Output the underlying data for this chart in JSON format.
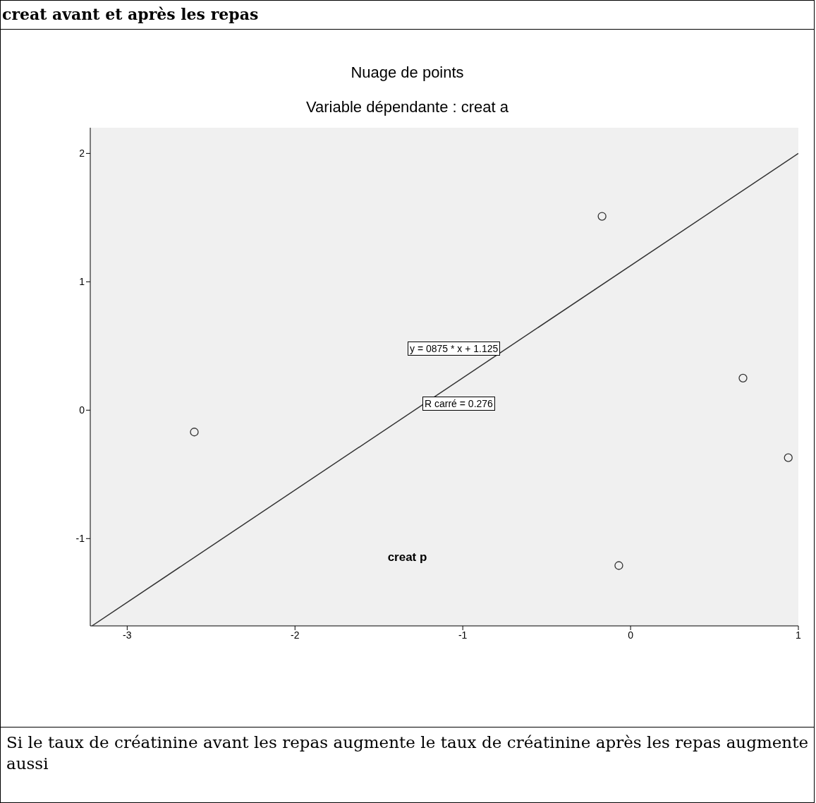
{
  "chart_data": {
    "type": "scatter",
    "title": "Nuage de points",
    "subtitle": "Variable dépendante : creat a",
    "xlabel": "creat p",
    "annotations": [
      "creat avant et après les repas",
      "y = 0875 * x + 1.125",
      "R carré = 0.276",
      "Si le taux de créatinine avant les repas augmente le taux de créatinine après les repas augmente aussi"
    ],
    "series": [
      {
        "x": [
          -2.6,
          -0.17,
          -0.07,
          0.67,
          0.94
        ],
        "values": [
          -0.17,
          1.51,
          -1.21,
          0.25,
          -0.37
        ],
        "color": "#333333"
      },
      {
        "type": "line",
        "x": [
          -3.21,
          1.0
        ],
        "values": [
          -1.68,
          2.0
        ],
        "color": "#333333",
        "marker": "none"
      }
    ],
    "marker": "circle",
    "grid": false,
    "xlim": [
      -3.22,
      1.0
    ],
    "xticks": [
      -3,
      -2,
      -1,
      0,
      1
    ],
    "ylim": [
      -1.68,
      2.2
    ],
    "yticks": [
      -1,
      0,
      1,
      2
    ]
  }
}
